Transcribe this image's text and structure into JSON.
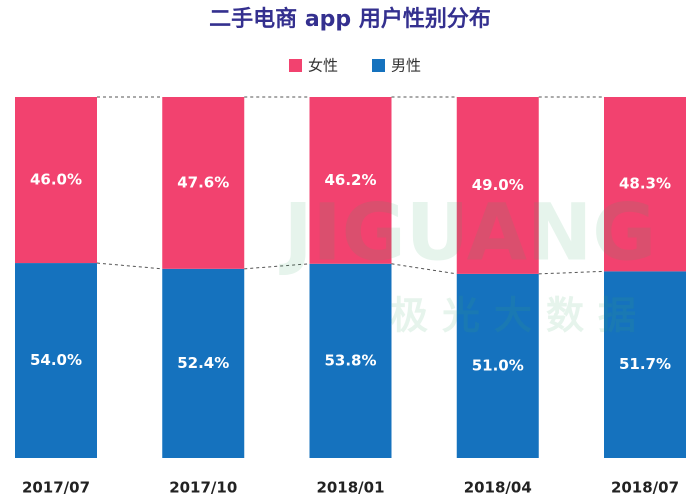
{
  "chart_data": {
    "type": "stacked-bar",
    "title": "二手电商 app 用户性别分布",
    "categories": [
      "2017/07",
      "2017/10",
      "2018/01",
      "2018/04",
      "2018/07"
    ],
    "series": [
      {
        "name": "女性",
        "color": "#f2426f",
        "values": [
          46,
          47.6,
          46.2,
          49,
          48.3
        ],
        "value_labels": [
          "46.0%",
          "47.6%",
          "46.2%",
          "49.0%",
          "48.3%"
        ]
      },
      {
        "name": "男性",
        "color": "#1572be",
        "values": [
          54,
          52.4,
          53.8,
          51,
          51.7
        ],
        "value_labels": [
          "54.0%",
          "52.4%",
          "53.8%",
          "51.0%",
          "51.7%"
        ]
      }
    ],
    "ylim": [
      0,
      100
    ],
    "watermark": {
      "text": "JIGUANG",
      "subtext": "极光大数据"
    }
  }
}
